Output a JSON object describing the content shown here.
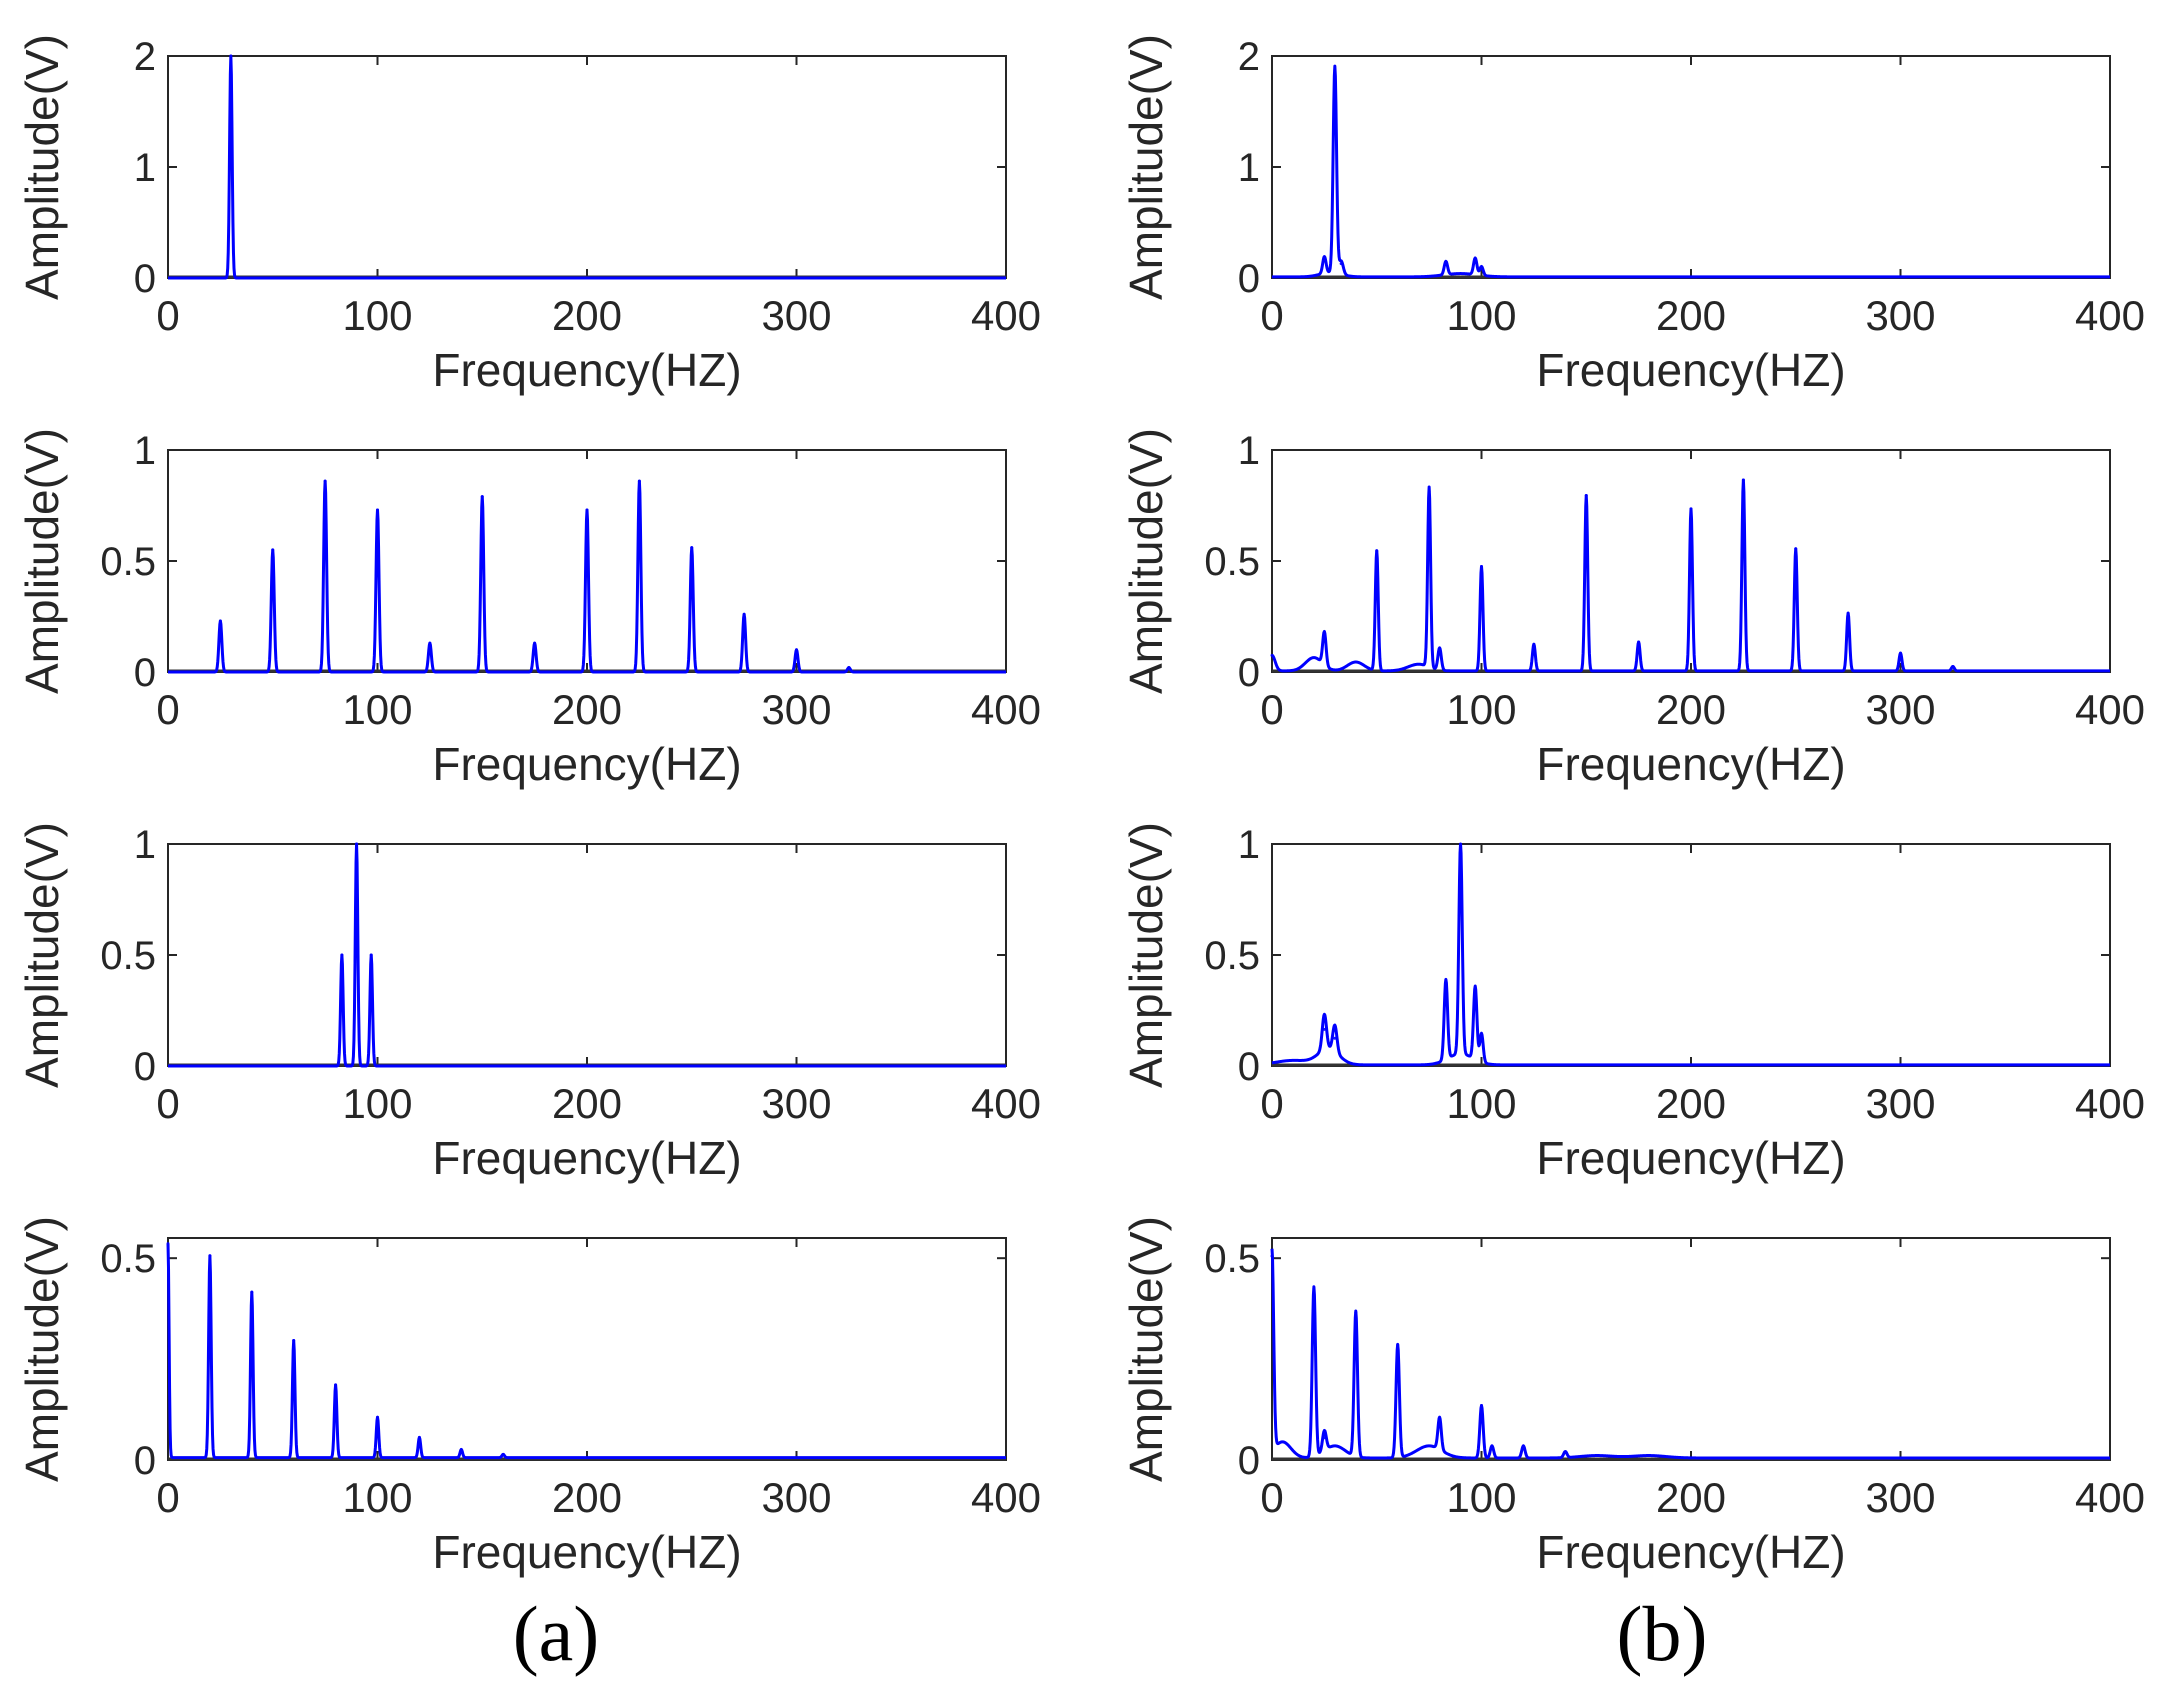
{
  "colors": {
    "line": "#0000ff",
    "baseline": "#333333",
    "axes": "#262626"
  },
  "captions": [
    "(a)",
    "(b)"
  ],
  "chart_data": [
    {
      "id": "a1",
      "column": 0,
      "row": 0,
      "type": "line",
      "xlabel": "Frequency(HZ)",
      "ylabel": "Amplitude(V)",
      "xlim": [
        0,
        400
      ],
      "ylim": [
        0,
        2
      ],
      "xticks": [
        0,
        100,
        200,
        300,
        400
      ],
      "xtick_labels": [
        "0",
        "100",
        "200",
        "300",
        "400"
      ],
      "yticks": [
        0,
        1,
        2
      ],
      "ytick_labels": [
        "0",
        "1",
        "2"
      ],
      "peaks": [
        [
          30,
          2.0,
          0.6
        ]
      ],
      "series": [
        {
          "name": "spectrum",
          "baseline": 0.0
        }
      ]
    },
    {
      "id": "a2",
      "column": 0,
      "row": 1,
      "type": "line",
      "xlabel": "Frequency(HZ)",
      "ylabel": "Amplitude(V)",
      "xlim": [
        0,
        400
      ],
      "ylim": [
        0,
        1
      ],
      "xticks": [
        0,
        100,
        200,
        300,
        400
      ],
      "xtick_labels": [
        "0",
        "100",
        "200",
        "300",
        "400"
      ],
      "yticks": [
        0,
        0.5,
        1
      ],
      "ytick_labels": [
        "0",
        "0.5",
        "1"
      ],
      "peaks": [
        [
          25,
          0.23,
          0.7
        ],
        [
          50,
          0.55,
          0.7
        ],
        [
          75,
          0.86,
          0.7
        ],
        [
          100,
          0.73,
          0.7
        ],
        [
          125,
          0.13,
          0.7
        ],
        [
          150,
          0.79,
          0.7
        ],
        [
          175,
          0.13,
          0.7
        ],
        [
          200,
          0.73,
          0.7
        ],
        [
          225,
          0.86,
          0.7
        ],
        [
          250,
          0.56,
          0.7
        ],
        [
          275,
          0.26,
          0.7
        ],
        [
          300,
          0.1,
          0.7
        ],
        [
          325,
          0.02,
          0.7
        ]
      ],
      "series": [
        {
          "name": "spectrum",
          "baseline": 0.0
        }
      ]
    },
    {
      "id": "a3",
      "column": 0,
      "row": 2,
      "type": "line",
      "xlabel": "Frequency(HZ)",
      "ylabel": "Amplitude(V)",
      "xlim": [
        0,
        400
      ],
      "ylim": [
        0,
        1
      ],
      "xticks": [
        0,
        100,
        200,
        300,
        400
      ],
      "xtick_labels": [
        "0",
        "100",
        "200",
        "300",
        "400"
      ],
      "yticks": [
        0,
        0.5,
        1
      ],
      "ytick_labels": [
        "0",
        "0.5",
        "1"
      ],
      "peaks": [
        [
          83,
          0.5,
          0.6
        ],
        [
          90,
          1.0,
          0.6
        ],
        [
          97,
          0.5,
          0.6
        ]
      ],
      "series": [
        {
          "name": "spectrum",
          "baseline": 0.0
        }
      ]
    },
    {
      "id": "a4",
      "column": 0,
      "row": 3,
      "type": "line",
      "xlabel": "Frequency(HZ)",
      "ylabel": "Amplitude(V)",
      "xlim": [
        0,
        400
      ],
      "ylim": [
        0,
        0.55
      ],
      "xticks": [
        0,
        100,
        200,
        300,
        400
      ],
      "xtick_labels": [
        "0",
        "100",
        "200",
        "300",
        "400"
      ],
      "yticks": [
        0,
        0.5
      ],
      "ytick_labels": [
        "0",
        "0.5"
      ],
      "peaks": [
        [
          0,
          0.53,
          0.5
        ],
        [
          20,
          0.5,
          0.6
        ],
        [
          40,
          0.41,
          0.6
        ],
        [
          60,
          0.29,
          0.6
        ],
        [
          80,
          0.18,
          0.6
        ],
        [
          100,
          0.1,
          0.6
        ],
        [
          120,
          0.05,
          0.6
        ],
        [
          140,
          0.02,
          0.6
        ],
        [
          160,
          0.008,
          0.6
        ]
      ],
      "series": [
        {
          "name": "spectrum",
          "baseline": 0.006
        }
      ]
    },
    {
      "id": "b1",
      "column": 1,
      "row": 0,
      "type": "line",
      "xlabel": "Frequency(HZ)",
      "ylabel": "Amplitude(V)",
      "xlim": [
        0,
        400
      ],
      "ylim": [
        0,
        2
      ],
      "xticks": [
        0,
        100,
        200,
        300,
        400
      ],
      "xtick_labels": [
        "0",
        "100",
        "200",
        "300",
        "400"
      ],
      "yticks": [
        0,
        1,
        2
      ],
      "ytick_labels": [
        "0",
        "1",
        "2"
      ],
      "peaks": [
        [
          25,
          0.15,
          0.8
        ],
        [
          30,
          1.86,
          0.8
        ],
        [
          33,
          0.12,
          1.0
        ],
        [
          83,
          0.12,
          0.8
        ],
        [
          97,
          0.15,
          0.8
        ],
        [
          100,
          0.08,
          0.8
        ]
      ],
      "bumps": [
        [
          28,
          0.04,
          5
        ],
        [
          90,
          0.03,
          8
        ]
      ],
      "series": [
        {
          "name": "spectrum",
          "baseline": 0.01
        }
      ]
    },
    {
      "id": "b2",
      "column": 1,
      "row": 1,
      "type": "line",
      "xlabel": "Frequency(HZ)",
      "ylabel": "Amplitude(V)",
      "xlim": [
        0,
        400
      ],
      "ylim": [
        0,
        1
      ],
      "xticks": [
        0,
        100,
        200,
        300,
        400
      ],
      "xtick_labels": [
        "0",
        "100",
        "200",
        "300",
        "400"
      ],
      "yticks": [
        0,
        0.5,
        1
      ],
      "ytick_labels": [
        "0",
        "0.5",
        "1"
      ],
      "peaks": [
        [
          0,
          0.07,
          1.5
        ],
        [
          25,
          0.15,
          0.8
        ],
        [
          50,
          0.54,
          0.7
        ],
        [
          75,
          0.81,
          0.7
        ],
        [
          80,
          0.1,
          0.8
        ],
        [
          100,
          0.47,
          0.7
        ],
        [
          125,
          0.12,
          0.7
        ],
        [
          150,
          0.79,
          0.7
        ],
        [
          175,
          0.13,
          0.7
        ],
        [
          200,
          0.73,
          0.7
        ],
        [
          225,
          0.86,
          0.7
        ],
        [
          250,
          0.55,
          0.7
        ],
        [
          275,
          0.26,
          0.7
        ],
        [
          300,
          0.08,
          0.7
        ],
        [
          325,
          0.02,
          0.7
        ]
      ],
      "bumps": [
        [
          20,
          0.06,
          4
        ],
        [
          40,
          0.04,
          4
        ],
        [
          70,
          0.03,
          5
        ]
      ],
      "series": [
        {
          "name": "spectrum",
          "baseline": 0.005
        }
      ]
    },
    {
      "id": "b3",
      "column": 1,
      "row": 2,
      "type": "line",
      "xlabel": "Frequency(HZ)",
      "ylabel": "Amplitude(V)",
      "xlim": [
        0,
        400
      ],
      "ylim": [
        0,
        1
      ],
      "xticks": [
        0,
        100,
        200,
        300,
        400
      ],
      "xtick_labels": [
        "0",
        "100",
        "200",
        "300",
        "400"
      ],
      "yticks": [
        0,
        0.5,
        1
      ],
      "ytick_labels": [
        "0",
        "0.5",
        "1"
      ],
      "peaks": [
        [
          25,
          0.16,
          1.0
        ],
        [
          30,
          0.12,
          1.0
        ],
        [
          83,
          0.36,
          0.8
        ],
        [
          90,
          0.95,
          0.8
        ],
        [
          97,
          0.33,
          0.8
        ],
        [
          100,
          0.13,
          0.8
        ]
      ],
      "bumps": [
        [
          10,
          0.02,
          8
        ],
        [
          27,
          0.07,
          5
        ],
        [
          90,
          0.05,
          6
        ]
      ],
      "series": [
        {
          "name": "spectrum",
          "baseline": 0.005
        }
      ]
    },
    {
      "id": "b4",
      "column": 1,
      "row": 3,
      "type": "line",
      "xlabel": "Frequency(HZ)",
      "ylabel": "Amplitude(V)",
      "xlim": [
        0,
        400
      ],
      "ylim": [
        0,
        0.55
      ],
      "xticks": [
        0,
        100,
        200,
        300,
        400
      ],
      "xtick_labels": [
        "0",
        "100",
        "200",
        "300",
        "400"
      ],
      "yticks": [
        0,
        0.5
      ],
      "ytick_labels": [
        "0",
        "0.5"
      ],
      "peaks": [
        [
          0,
          0.5,
          0.8
        ],
        [
          20,
          0.42,
          0.8
        ],
        [
          25,
          0.05,
          0.9
        ],
        [
          40,
          0.36,
          0.8
        ],
        [
          60,
          0.28,
          0.8
        ],
        [
          80,
          0.08,
          0.8
        ],
        [
          100,
          0.13,
          0.8
        ],
        [
          105,
          0.03,
          0.8
        ],
        [
          120,
          0.03,
          0.8
        ],
        [
          140,
          0.015,
          0.8
        ]
      ],
      "bumps": [
        [
          5,
          0.04,
          4
        ],
        [
          30,
          0.03,
          5
        ],
        [
          75,
          0.03,
          6
        ],
        [
          155,
          0.006,
          8
        ],
        [
          180,
          0.006,
          8
        ]
      ],
      "series": [
        {
          "name": "spectrum",
          "baseline": 0.005
        }
      ]
    }
  ]
}
